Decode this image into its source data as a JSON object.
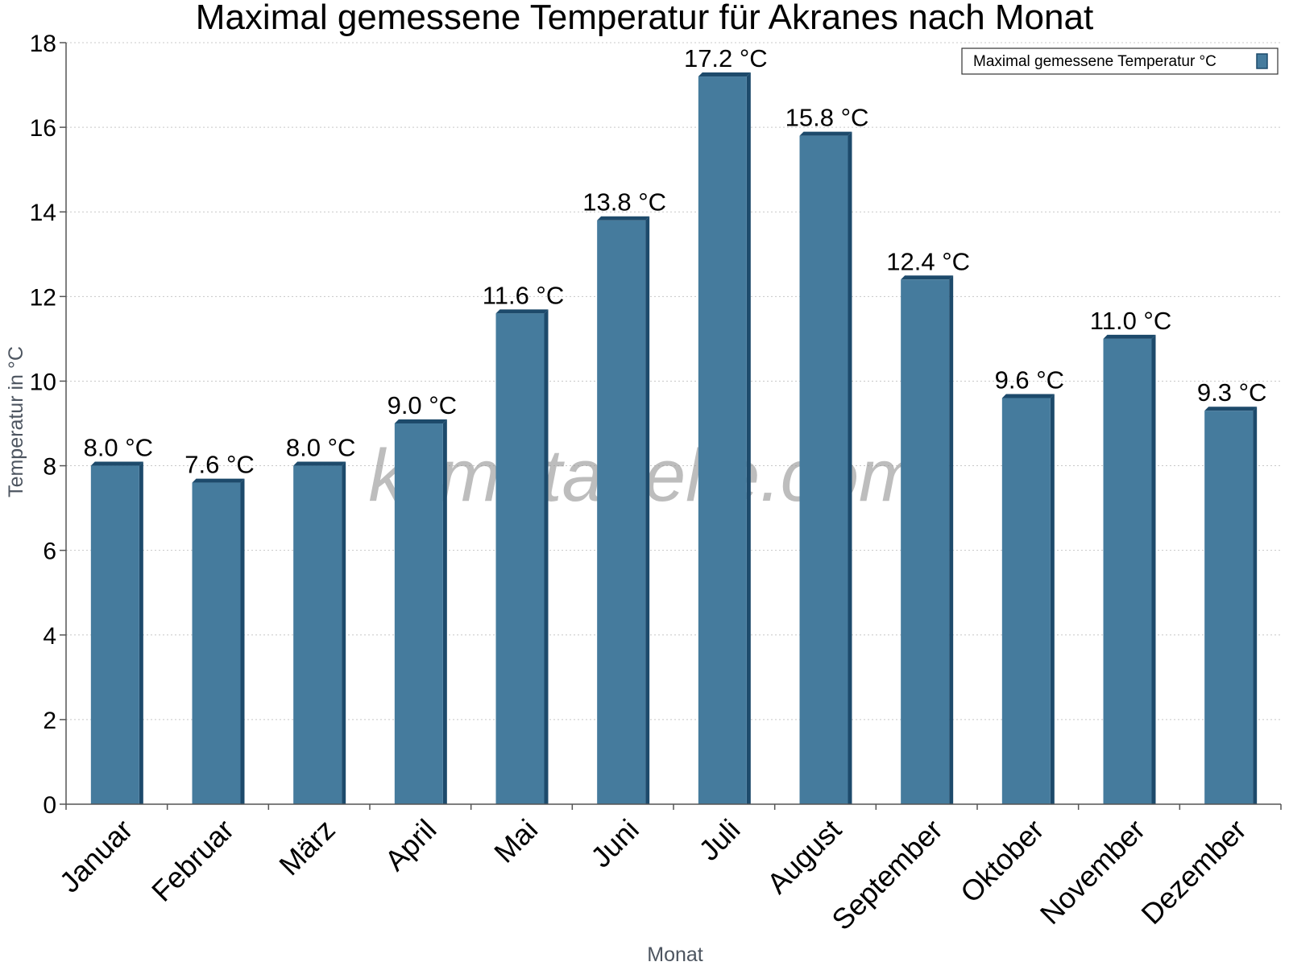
{
  "chart_data": {
    "type": "bar",
    "title": "Maximal gemessene Temperatur für Akranes nach Monat",
    "xlabel": "Monat",
    "ylabel": "Temperatur in °C",
    "ylim": [
      0,
      18
    ],
    "ytick_step": 2,
    "grid": true,
    "legend_position": "top-right",
    "categories": [
      "Januar",
      "Februar",
      "März",
      "April",
      "Mai",
      "Juni",
      "Juli",
      "August",
      "September",
      "Oktober",
      "November",
      "Dezember"
    ],
    "series": [
      {
        "name": "Maximal gemessene Temperatur °C",
        "values": [
          8.0,
          7.6,
          8.0,
          9.0,
          11.6,
          13.8,
          17.2,
          15.8,
          12.4,
          9.6,
          11.0,
          9.3
        ],
        "labels": [
          "8.0 °C",
          "7.6 °C",
          "8.0 °C",
          "9.0 °C",
          "11.6 °C",
          "13.8 °C",
          "17.2 °C",
          "15.8 °C",
          "12.4 °C",
          "9.6 °C",
          "11.0 °C",
          "9.3 °C"
        ],
        "color": "#457b9d",
        "edge_color": "#1d4a6b"
      }
    ]
  },
  "watermark": "klimatabelle.com"
}
